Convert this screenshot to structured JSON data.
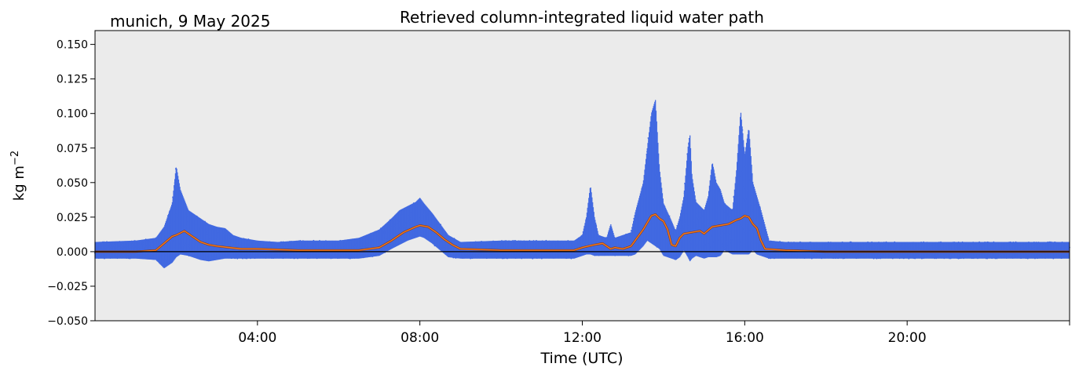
{
  "location_date": "munich, 9 May 2025",
  "colors": {
    "scatter": "#4169e1",
    "smooth": "#f07820",
    "background": "#ebebeb",
    "zero_line": "#000000"
  },
  "chart_data": {
    "type": "scatter",
    "title": "Retrieved column-integrated liquid water path",
    "xlabel": "Time (UTC)",
    "ylabel": "kg m",
    "ylabel_sup": "−2",
    "xlim": [
      0,
      24
    ],
    "ylim": [
      -0.05,
      0.16
    ],
    "x_ticks": [
      4,
      8,
      12,
      16,
      20
    ],
    "x_tick_labels": [
      "04:00",
      "08:00",
      "12:00",
      "16:00",
      "20:00"
    ],
    "y_ticks": [
      -0.05,
      -0.025,
      0.0,
      0.025,
      0.05,
      0.075,
      0.1,
      0.125,
      0.15
    ],
    "y_tick_labels": [
      "−0.050",
      "−0.025",
      "0.000",
      "0.025",
      "0.050",
      "0.075",
      "0.100",
      "0.125",
      "0.150"
    ],
    "grid": false,
    "legend": "none",
    "series": [
      {
        "kind": "envelope",
        "x": [
          0.0,
          1.0,
          1.5,
          1.7,
          1.9,
          2.0,
          2.1,
          2.3,
          2.6,
          2.8,
          3.0,
          3.2,
          3.4,
          3.6,
          4.0,
          4.5,
          5.0,
          5.5,
          6.0,
          6.5,
          7.0,
          7.3,
          7.5,
          7.7,
          7.9,
          8.0,
          8.1,
          8.3,
          8.5,
          8.7,
          9.0,
          10.0,
          11.0,
          11.8,
          12.0,
          12.1,
          12.2,
          12.3,
          12.4,
          12.6,
          12.7,
          12.8,
          13.0,
          13.2,
          13.3,
          13.5,
          13.6,
          13.7,
          13.8,
          13.9,
          14.0,
          14.2,
          14.3,
          14.4,
          14.5,
          14.6,
          14.65,
          14.7,
          14.8,
          15.0,
          15.1,
          15.2,
          15.3,
          15.4,
          15.5,
          15.7,
          15.8,
          15.9,
          16.0,
          16.1,
          16.2,
          16.3,
          16.4,
          16.6,
          17.0,
          18.0,
          19.0,
          20.0,
          21.0,
          22.0,
          23.0,
          24.0
        ],
        "upper": [
          0.007,
          0.008,
          0.01,
          0.018,
          0.035,
          0.062,
          0.045,
          0.03,
          0.024,
          0.02,
          0.018,
          0.017,
          0.012,
          0.01,
          0.008,
          0.007,
          0.008,
          0.008,
          0.008,
          0.01,
          0.016,
          0.024,
          0.03,
          0.033,
          0.036,
          0.039,
          0.035,
          0.028,
          0.02,
          0.012,
          0.007,
          0.008,
          0.008,
          0.008,
          0.012,
          0.025,
          0.048,
          0.025,
          0.012,
          0.01,
          0.02,
          0.01,
          0.012,
          0.014,
          0.028,
          0.05,
          0.075,
          0.1,
          0.11,
          0.06,
          0.035,
          0.022,
          0.015,
          0.025,
          0.04,
          0.075,
          0.085,
          0.055,
          0.036,
          0.03,
          0.04,
          0.065,
          0.05,
          0.045,
          0.035,
          0.03,
          0.06,
          0.102,
          0.07,
          0.09,
          0.05,
          0.04,
          0.03,
          0.008,
          0.007,
          0.007,
          0.007,
          0.007,
          0.007,
          0.007,
          0.007,
          0.007
        ],
        "lower": [
          -0.005,
          -0.005,
          -0.006,
          -0.012,
          -0.008,
          -0.004,
          -0.002,
          -0.003,
          -0.006,
          -0.007,
          -0.006,
          -0.005,
          -0.005,
          -0.005,
          -0.005,
          -0.005,
          -0.005,
          -0.005,
          -0.005,
          -0.005,
          -0.003,
          0.002,
          0.005,
          0.008,
          0.01,
          0.011,
          0.01,
          0.006,
          0.001,
          -0.004,
          -0.005,
          -0.005,
          -0.005,
          -0.005,
          -0.003,
          -0.002,
          -0.002,
          -0.003,
          -0.003,
          -0.003,
          -0.003,
          -0.003,
          -0.003,
          -0.003,
          -0.002,
          0.004,
          0.008,
          0.006,
          0.004,
          0.002,
          -0.003,
          -0.005,
          -0.006,
          -0.004,
          0.001,
          -0.004,
          -0.007,
          -0.005,
          -0.003,
          -0.005,
          -0.004,
          -0.004,
          -0.004,
          -0.003,
          0.001,
          -0.002,
          -0.002,
          -0.002,
          -0.002,
          -0.002,
          0.001,
          -0.002,
          -0.003,
          -0.005,
          -0.005,
          -0.005,
          -0.005,
          -0.005,
          -0.005,
          -0.005,
          -0.005,
          -0.005
        ]
      },
      {
        "kind": "smoothed",
        "x": [
          0.0,
          1.0,
          1.5,
          1.7,
          1.9,
          2.0,
          2.2,
          2.4,
          2.6,
          2.8,
          3.0,
          3.3,
          3.6,
          4.0,
          5.0,
          6.0,
          6.5,
          7.0,
          7.3,
          7.6,
          7.9,
          8.0,
          8.2,
          8.4,
          8.6,
          8.8,
          9.0,
          10.0,
          11.0,
          11.8,
          12.0,
          12.3,
          12.5,
          12.7,
          12.8,
          13.0,
          13.2,
          13.3,
          13.5,
          13.7,
          13.8,
          13.9,
          14.0,
          14.1,
          14.2,
          14.3,
          14.4,
          14.5,
          14.7,
          14.9,
          15.0,
          15.2,
          15.4,
          15.6,
          15.8,
          15.9,
          16.0,
          16.1,
          16.2,
          16.3,
          16.4,
          16.5,
          17.0,
          18.0,
          20.0,
          22.0,
          24.0
        ],
        "y": [
          0.0,
          0.0,
          0.001,
          0.006,
          0.011,
          0.012,
          0.015,
          0.011,
          0.007,
          0.005,
          0.004,
          0.003,
          0.002,
          0.002,
          0.001,
          0.001,
          0.001,
          0.003,
          0.008,
          0.014,
          0.018,
          0.019,
          0.018,
          0.014,
          0.009,
          0.005,
          0.002,
          0.001,
          0.001,
          0.001,
          0.003,
          0.005,
          0.006,
          0.002,
          0.003,
          0.002,
          0.004,
          0.008,
          0.016,
          0.026,
          0.027,
          0.024,
          0.022,
          0.016,
          0.005,
          0.004,
          0.01,
          0.013,
          0.014,
          0.015,
          0.013,
          0.018,
          0.019,
          0.02,
          0.023,
          0.024,
          0.026,
          0.025,
          0.02,
          0.017,
          0.008,
          0.002,
          0.001,
          0.0,
          0.0,
          0.0,
          0.0
        ]
      }
    ]
  }
}
